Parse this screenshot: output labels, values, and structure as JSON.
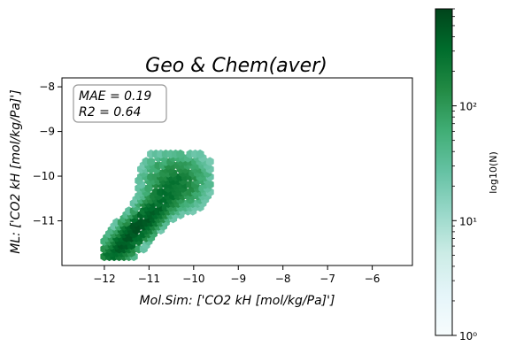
{
  "chart_data": {
    "type": "heatmap",
    "subtype": "hexbin",
    "title": "Geo & Chem(aver)",
    "xlabel": "Mol.Sim: ['CO2 kH [mol/kg/Pa]']",
    "ylabel": "ML: ['CO2 kH [mol/kg/Pa]']",
    "xlim": [
      -12.95,
      -5.1
    ],
    "ylim": [
      -12.0,
      -7.8
    ],
    "x_ticks": [
      -12,
      -11,
      -10,
      -9,
      -8,
      -7,
      -6
    ],
    "x_tick_labels": [
      "−12",
      "−11",
      "−10",
      "−9",
      "−8",
      "−7",
      "−6"
    ],
    "y_ticks": [
      -8,
      -9,
      -10,
      -11
    ],
    "y_tick_labels": [
      "−8",
      "−9",
      "−10",
      "−11"
    ],
    "grid": false,
    "annotations": [
      "MAE = 0.19",
      "R2 = 0.64"
    ],
    "density": {
      "center": [
        -11.3,
        -11.2
      ],
      "trend_slope": 0.95,
      "extent_x": [
        -12.0,
        -9.6
      ],
      "extent_y": [
        -11.8,
        -9.5
      ],
      "max_count": 700
    },
    "colorbar": {
      "label": "log10(N)",
      "scale": "log",
      "range": [
        1,
        700
      ],
      "ticks": [
        1,
        10,
        100
      ],
      "tick_labels": [
        "10⁰",
        "10¹",
        "10²"
      ],
      "colors": [
        "#f7fcfd",
        "#e5f5f9",
        "#ccece6",
        "#99d8c9",
        "#66c2a4",
        "#41ae76",
        "#238b45",
        "#006d2c",
        "#00441b"
      ]
    }
  }
}
